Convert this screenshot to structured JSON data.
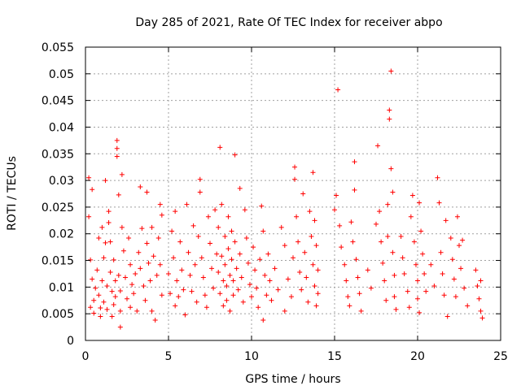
{
  "chart_data": {
    "type": "scatter",
    "title": "Day 285 of 2021, Rate Of TEC Index for receiver abpo",
    "xlabel": "GPS time / hours",
    "ylabel": "ROTI / TECUs",
    "xlim": [
      0,
      25
    ],
    "ylim": [
      0,
      0.055
    ],
    "x_ticks": [
      "0",
      "5",
      "10",
      "15",
      "20",
      "25"
    ],
    "y_ticks": [
      "0",
      "0.005",
      "0.01",
      "0.015",
      "0.02",
      "0.025",
      "0.03",
      "0.035",
      "0.04",
      "0.045",
      "0.05",
      "0.055"
    ],
    "grid": true,
    "marker": "+",
    "color": "#ff0000",
    "series": [
      {
        "points": [
          [
            0.2,
            0.0305
          ],
          [
            0.2,
            0.0232
          ],
          [
            0.3,
            0.0151
          ],
          [
            0.3,
            0.0062
          ],
          [
            0.4,
            0.0283
          ],
          [
            0.4,
            0.0115
          ],
          [
            0.5,
            0.0075
          ],
          [
            0.5,
            0.0051
          ],
          [
            0.6,
            0.0098
          ],
          [
            0.7,
            0.0132
          ],
          [
            0.8,
            0.0192
          ],
          [
            0.8,
            0.0085
          ],
          [
            0.9,
            0.0061
          ],
          [
            0.9,
            0.0045
          ],
          [
            1.0,
            0.0212
          ],
          [
            1.0,
            0.0112
          ],
          [
            1.1,
            0.0155
          ],
          [
            1.1,
            0.0072
          ],
          [
            1.2,
            0.03
          ],
          [
            1.2,
            0.0183
          ],
          [
            1.3,
            0.0102
          ],
          [
            1.3,
            0.0058
          ],
          [
            1.4,
            0.0242
          ],
          [
            1.4,
            0.0221
          ],
          [
            1.5,
            0.0185
          ],
          [
            1.5,
            0.0128
          ],
          [
            1.6,
            0.0092
          ],
          [
            1.6,
            0.0045
          ],
          [
            1.7,
            0.0151
          ],
          [
            1.7,
            0.0067
          ],
          [
            1.8,
            0.0112
          ],
          [
            1.8,
            0.0082
          ],
          [
            1.9,
            0.0375
          ],
          [
            1.9,
            0.036
          ],
          [
            1.9,
            0.0345
          ],
          [
            2.0,
            0.0273
          ],
          [
            2.0,
            0.0122
          ],
          [
            2.1,
            0.0093
          ],
          [
            2.1,
            0.0055
          ],
          [
            2.2,
            0.0311
          ],
          [
            2.2,
            0.0212
          ],
          [
            2.1,
            0.0025
          ],
          [
            2.3,
            0.0168
          ],
          [
            2.4,
            0.0118
          ],
          [
            2.5,
            0.0078
          ],
          [
            2.6,
            0.0192
          ],
          [
            2.7,
            0.0142
          ],
          [
            2.7,
            0.0062
          ],
          [
            2.8,
            0.0105
          ],
          [
            2.9,
            0.0088
          ],
          [
            3.0,
            0.0125
          ],
          [
            3.1,
            0.0055
          ],
          [
            3.2,
            0.0165
          ],
          [
            3.3,
            0.0288
          ],
          [
            3.3,
            0.0135
          ],
          [
            3.4,
            0.021
          ],
          [
            3.5,
            0.0102
          ],
          [
            3.6,
            0.0075
          ],
          [
            3.7,
            0.0278
          ],
          [
            3.7,
            0.0182
          ],
          [
            3.8,
            0.0145
          ],
          [
            3.9,
            0.0112
          ],
          [
            4.0,
            0.0212
          ],
          [
            4.0,
            0.0055
          ],
          [
            4.1,
            0.0158
          ],
          [
            4.2,
            0.0038
          ],
          [
            4.3,
            0.0122
          ],
          [
            4.4,
            0.0192
          ],
          [
            4.5,
            0.0255
          ],
          [
            4.5,
            0.0142
          ],
          [
            4.6,
            0.0085
          ],
          [
            4.6,
            0.0235
          ],
          [
            5.0,
            0.0125
          ],
          [
            5.1,
            0.0088
          ],
          [
            5.2,
            0.0205
          ],
          [
            5.3,
            0.0155
          ],
          [
            5.4,
            0.0242
          ],
          [
            5.4,
            0.0065
          ],
          [
            5.5,
            0.0112
          ],
          [
            5.6,
            0.0082
          ],
          [
            5.7,
            0.0185
          ],
          [
            5.8,
            0.0132
          ],
          [
            5.9,
            0.0095
          ],
          [
            6.0,
            0.0048
          ],
          [
            6.1,
            0.0255
          ],
          [
            6.2,
            0.0165
          ],
          [
            6.3,
            0.0122
          ],
          [
            6.4,
            0.0092
          ],
          [
            6.5,
            0.0215
          ],
          [
            6.6,
            0.0142
          ],
          [
            6.7,
            0.0072
          ],
          [
            6.8,
            0.0195
          ],
          [
            6.9,
            0.0302
          ],
          [
            6.9,
            0.0278
          ],
          [
            7.0,
            0.0155
          ],
          [
            7.1,
            0.0118
          ],
          [
            7.2,
            0.0085
          ],
          [
            7.3,
            0.0062
          ],
          [
            7.4,
            0.0232
          ],
          [
            7.5,
            0.0182
          ],
          [
            7.6,
            0.0135
          ],
          [
            7.7,
            0.0098
          ],
          [
            7.8,
            0.0245
          ],
          [
            7.9,
            0.0162
          ],
          [
            8.0,
            0.0212
          ],
          [
            8.0,
            0.0128
          ],
          [
            8.1,
            0.0362
          ],
          [
            8.1,
            0.0088
          ],
          [
            8.2,
            0.0255
          ],
          [
            8.2,
            0.0158
          ],
          [
            8.3,
            0.0112
          ],
          [
            8.3,
            0.0065
          ],
          [
            8.4,
            0.0195
          ],
          [
            8.4,
            0.0142
          ],
          [
            8.5,
            0.0102
          ],
          [
            8.5,
            0.0075
          ],
          [
            8.6,
            0.0232
          ],
          [
            8.6,
            0.0172
          ],
          [
            8.7,
            0.0122
          ],
          [
            8.7,
            0.0055
          ],
          [
            8.8,
            0.0205
          ],
          [
            8.8,
            0.0152
          ],
          [
            8.9,
            0.0112
          ],
          [
            8.9,
            0.0085
          ],
          [
            9.0,
            0.0348
          ],
          [
            9.0,
            0.0185
          ],
          [
            9.1,
            0.0135
          ],
          [
            9.2,
            0.0095
          ],
          [
            9.3,
            0.0285
          ],
          [
            9.3,
            0.0162
          ],
          [
            9.4,
            0.0118
          ],
          [
            9.5,
            0.0072
          ],
          [
            9.6,
            0.0245
          ],
          [
            9.7,
            0.0192
          ],
          [
            9.8,
            0.0145
          ],
          [
            9.9,
            0.0105
          ],
          [
            10.0,
            0.0082
          ],
          [
            10.1,
            0.0175
          ],
          [
            10.2,
            0.0132
          ],
          [
            10.3,
            0.0098
          ],
          [
            10.4,
            0.0062
          ],
          [
            10.5,
            0.0152
          ],
          [
            10.6,
            0.0252
          ],
          [
            10.7,
            0.0205
          ],
          [
            10.7,
            0.0038
          ],
          [
            10.8,
            0.0122
          ],
          [
            10.9,
            0.0085
          ],
          [
            11.0,
            0.0162
          ],
          [
            11.1,
            0.0112
          ],
          [
            11.2,
            0.0075
          ],
          [
            11.4,
            0.0135
          ],
          [
            11.6,
            0.0095
          ],
          [
            11.8,
            0.0212
          ],
          [
            12.0,
            0.0178
          ],
          [
            12.0,
            0.0055
          ],
          [
            12.2,
            0.0115
          ],
          [
            12.4,
            0.0082
          ],
          [
            12.5,
            0.0155
          ],
          [
            12.6,
            0.0325
          ],
          [
            12.6,
            0.0302
          ],
          [
            12.7,
            0.0232
          ],
          [
            12.8,
            0.0185
          ],
          [
            12.9,
            0.0128
          ],
          [
            13.0,
            0.0095
          ],
          [
            13.1,
            0.0275
          ],
          [
            13.2,
            0.0165
          ],
          [
            13.3,
            0.0118
          ],
          [
            13.4,
            0.0072
          ],
          [
            13.5,
            0.0242
          ],
          [
            13.6,
            0.0195
          ],
          [
            13.7,
            0.0315
          ],
          [
            13.7,
            0.0142
          ],
          [
            13.8,
            0.0225
          ],
          [
            13.8,
            0.0102
          ],
          [
            13.9,
            0.0178
          ],
          [
            13.9,
            0.0065
          ],
          [
            14.0,
            0.0132
          ],
          [
            14.0,
            0.0088
          ],
          [
            15.0,
            0.0245
          ],
          [
            15.1,
            0.0272
          ],
          [
            15.2,
            0.047
          ],
          [
            15.3,
            0.0215
          ],
          [
            15.4,
            0.0175
          ],
          [
            15.6,
            0.0142
          ],
          [
            15.7,
            0.0112
          ],
          [
            15.8,
            0.0082
          ],
          [
            15.9,
            0.0065
          ],
          [
            16.0,
            0.0222
          ],
          [
            16.1,
            0.0185
          ],
          [
            16.2,
            0.0335
          ],
          [
            16.2,
            0.0282
          ],
          [
            16.3,
            0.0152
          ],
          [
            16.4,
            0.0118
          ],
          [
            16.5,
            0.0088
          ],
          [
            16.6,
            0.0055
          ],
          [
            17.0,
            0.0132
          ],
          [
            17.2,
            0.0098
          ],
          [
            17.5,
            0.0218
          ],
          [
            17.6,
            0.0365
          ],
          [
            17.7,
            0.0242
          ],
          [
            17.8,
            0.0185
          ],
          [
            17.9,
            0.0145
          ],
          [
            18.0,
            0.0112
          ],
          [
            18.1,
            0.0075
          ],
          [
            18.2,
            0.0255
          ],
          [
            18.2,
            0.0195
          ],
          [
            18.3,
            0.0432
          ],
          [
            18.3,
            0.0415
          ],
          [
            18.4,
            0.0505
          ],
          [
            18.4,
            0.0322
          ],
          [
            18.5,
            0.0278
          ],
          [
            18.5,
            0.0165
          ],
          [
            18.6,
            0.0122
          ],
          [
            18.6,
            0.0082
          ],
          [
            18.7,
            0.0058
          ],
          [
            19.0,
            0.0195
          ],
          [
            19.1,
            0.0155
          ],
          [
            19.2,
            0.0125
          ],
          [
            19.4,
            0.0092
          ],
          [
            19.5,
            0.0062
          ],
          [
            19.6,
            0.0232
          ],
          [
            19.7,
            0.0272
          ],
          [
            19.8,
            0.0185
          ],
          [
            19.9,
            0.0142
          ],
          [
            20.0,
            0.0112
          ],
          [
            20.0,
            0.0078
          ],
          [
            20.1,
            0.0258
          ],
          [
            20.1,
            0.0052
          ],
          [
            20.2,
            0.0205
          ],
          [
            20.3,
            0.0162
          ],
          [
            20.4,
            0.0125
          ],
          [
            20.5,
            0.0092
          ],
          [
            20.8,
            0.0142
          ],
          [
            21.0,
            0.0102
          ],
          [
            21.2,
            0.0305
          ],
          [
            21.3,
            0.0258
          ],
          [
            21.4,
            0.0165
          ],
          [
            21.5,
            0.0125
          ],
          [
            21.6,
            0.0085
          ],
          [
            21.7,
            0.0225
          ],
          [
            21.8,
            0.0045
          ],
          [
            22.0,
            0.0192
          ],
          [
            22.1,
            0.0152
          ],
          [
            22.2,
            0.0115
          ],
          [
            22.3,
            0.0082
          ],
          [
            22.4,
            0.0232
          ],
          [
            22.5,
            0.0178
          ],
          [
            22.6,
            0.0135
          ],
          [
            22.7,
            0.0188
          ],
          [
            22.8,
            0.0098
          ],
          [
            23.0,
            0.0065
          ],
          [
            23.5,
            0.0132
          ],
          [
            23.6,
            0.0102
          ],
          [
            23.7,
            0.0078
          ],
          [
            23.8,
            0.0112
          ],
          [
            23.8,
            0.0055
          ],
          [
            23.9,
            0.0042
          ]
        ]
      }
    ]
  }
}
